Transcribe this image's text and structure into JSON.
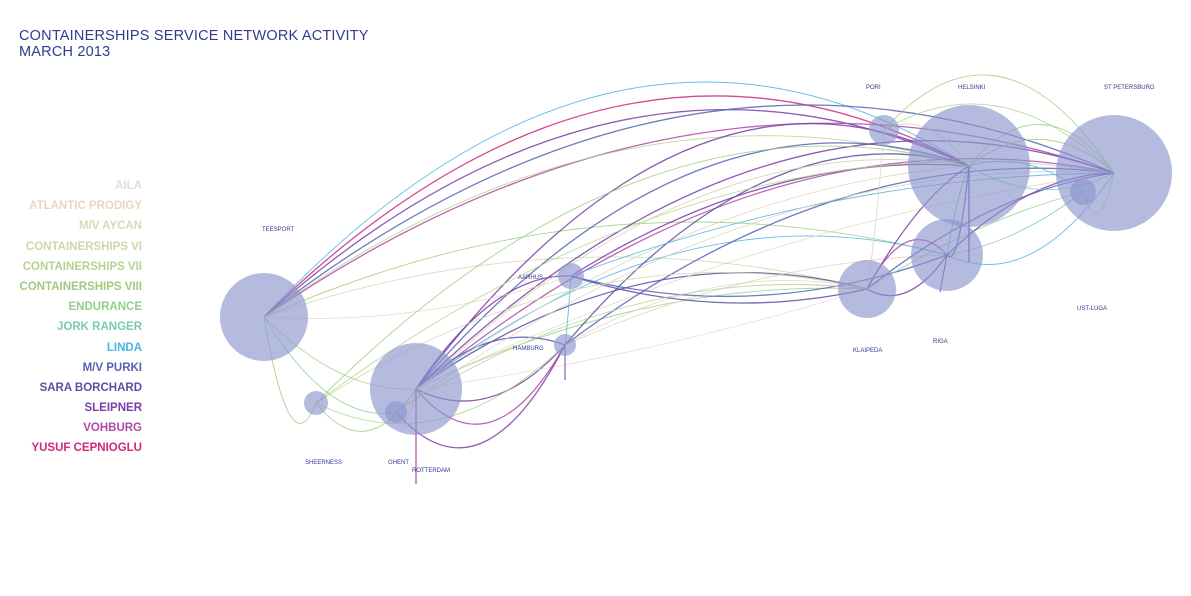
{
  "title": {
    "line1": "CONTAINERSHIPS SERVICE NETWORK ACTIVITY",
    "line2": "MARCH 2013"
  },
  "legend": [
    {
      "label": "AILA",
      "color": "#e4dcdc"
    },
    {
      "label": "ATLANTIC PRODIGY",
      "color": "#e8d6c4"
    },
    {
      "label": "M/V AYCAN",
      "color": "#dcd6bc"
    },
    {
      "label": "CONTAINERSHIPS VI",
      "color": "#cad9a8"
    },
    {
      "label": "CONTAINERSHIPS VII",
      "color": "#b4d38c"
    },
    {
      "label": "CONTAINERSHIPS VIII",
      "color": "#9ccc7c"
    },
    {
      "label": "ENDURANCE",
      "color": "#8fd08c"
    },
    {
      "label": "JORK RANGER",
      "color": "#78c9b4"
    },
    {
      "label": "LINDA",
      "color": "#4bb3e3"
    },
    {
      "label": "M/V PURKI",
      "color": "#5861b5"
    },
    {
      "label": "SARA BORCHARD",
      "color": "#5a4ea8"
    },
    {
      "label": "SLEIPNER",
      "color": "#7a3ea8"
    },
    {
      "label": "VOHBURG",
      "color": "#b04aa8"
    },
    {
      "label": "YUSUF CEPNIOGLU",
      "color": "#d0287a"
    }
  ],
  "ports": {
    "teesport": "TEESPORT",
    "sheerness": "SHEERNESS",
    "ghent": "GHENT",
    "rotterdam": "ROTTERDAM",
    "hamburg": "HAMBURG",
    "aarhus": "AARHUS",
    "klaipeda": "KLAIPEDA",
    "riga": "RIGA",
    "ust_luga": "UST-LUGA",
    "pori": "PORI",
    "helsinki": "HELSINKI",
    "st_petersburg": "ST PETERSBURG"
  },
  "colors": {
    "title": "#2f3b8f",
    "node_fill": "#8e97cc",
    "node_opacity": "0.65"
  }
}
